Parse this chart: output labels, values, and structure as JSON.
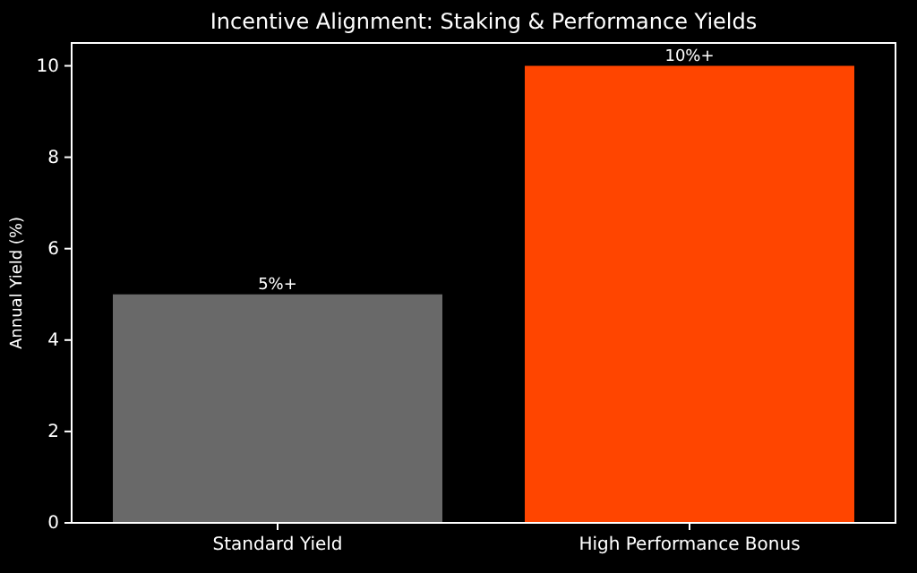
{
  "chart_data": {
    "type": "bar",
    "title": "Incentive Alignment: Staking & Performance Yields",
    "ylabel": "Annual Yield (%)",
    "categories": [
      "Standard Yield",
      "High Performance Bonus"
    ],
    "values": [
      5,
      10
    ],
    "colors": [
      "#696969",
      "#ff4500"
    ],
    "value_labels": [
      "5%+",
      "10%+"
    ],
    "ylim": [
      0,
      10.5
    ],
    "yticks": [
      0,
      2,
      4,
      6,
      8,
      10
    ],
    "grid": false
  }
}
